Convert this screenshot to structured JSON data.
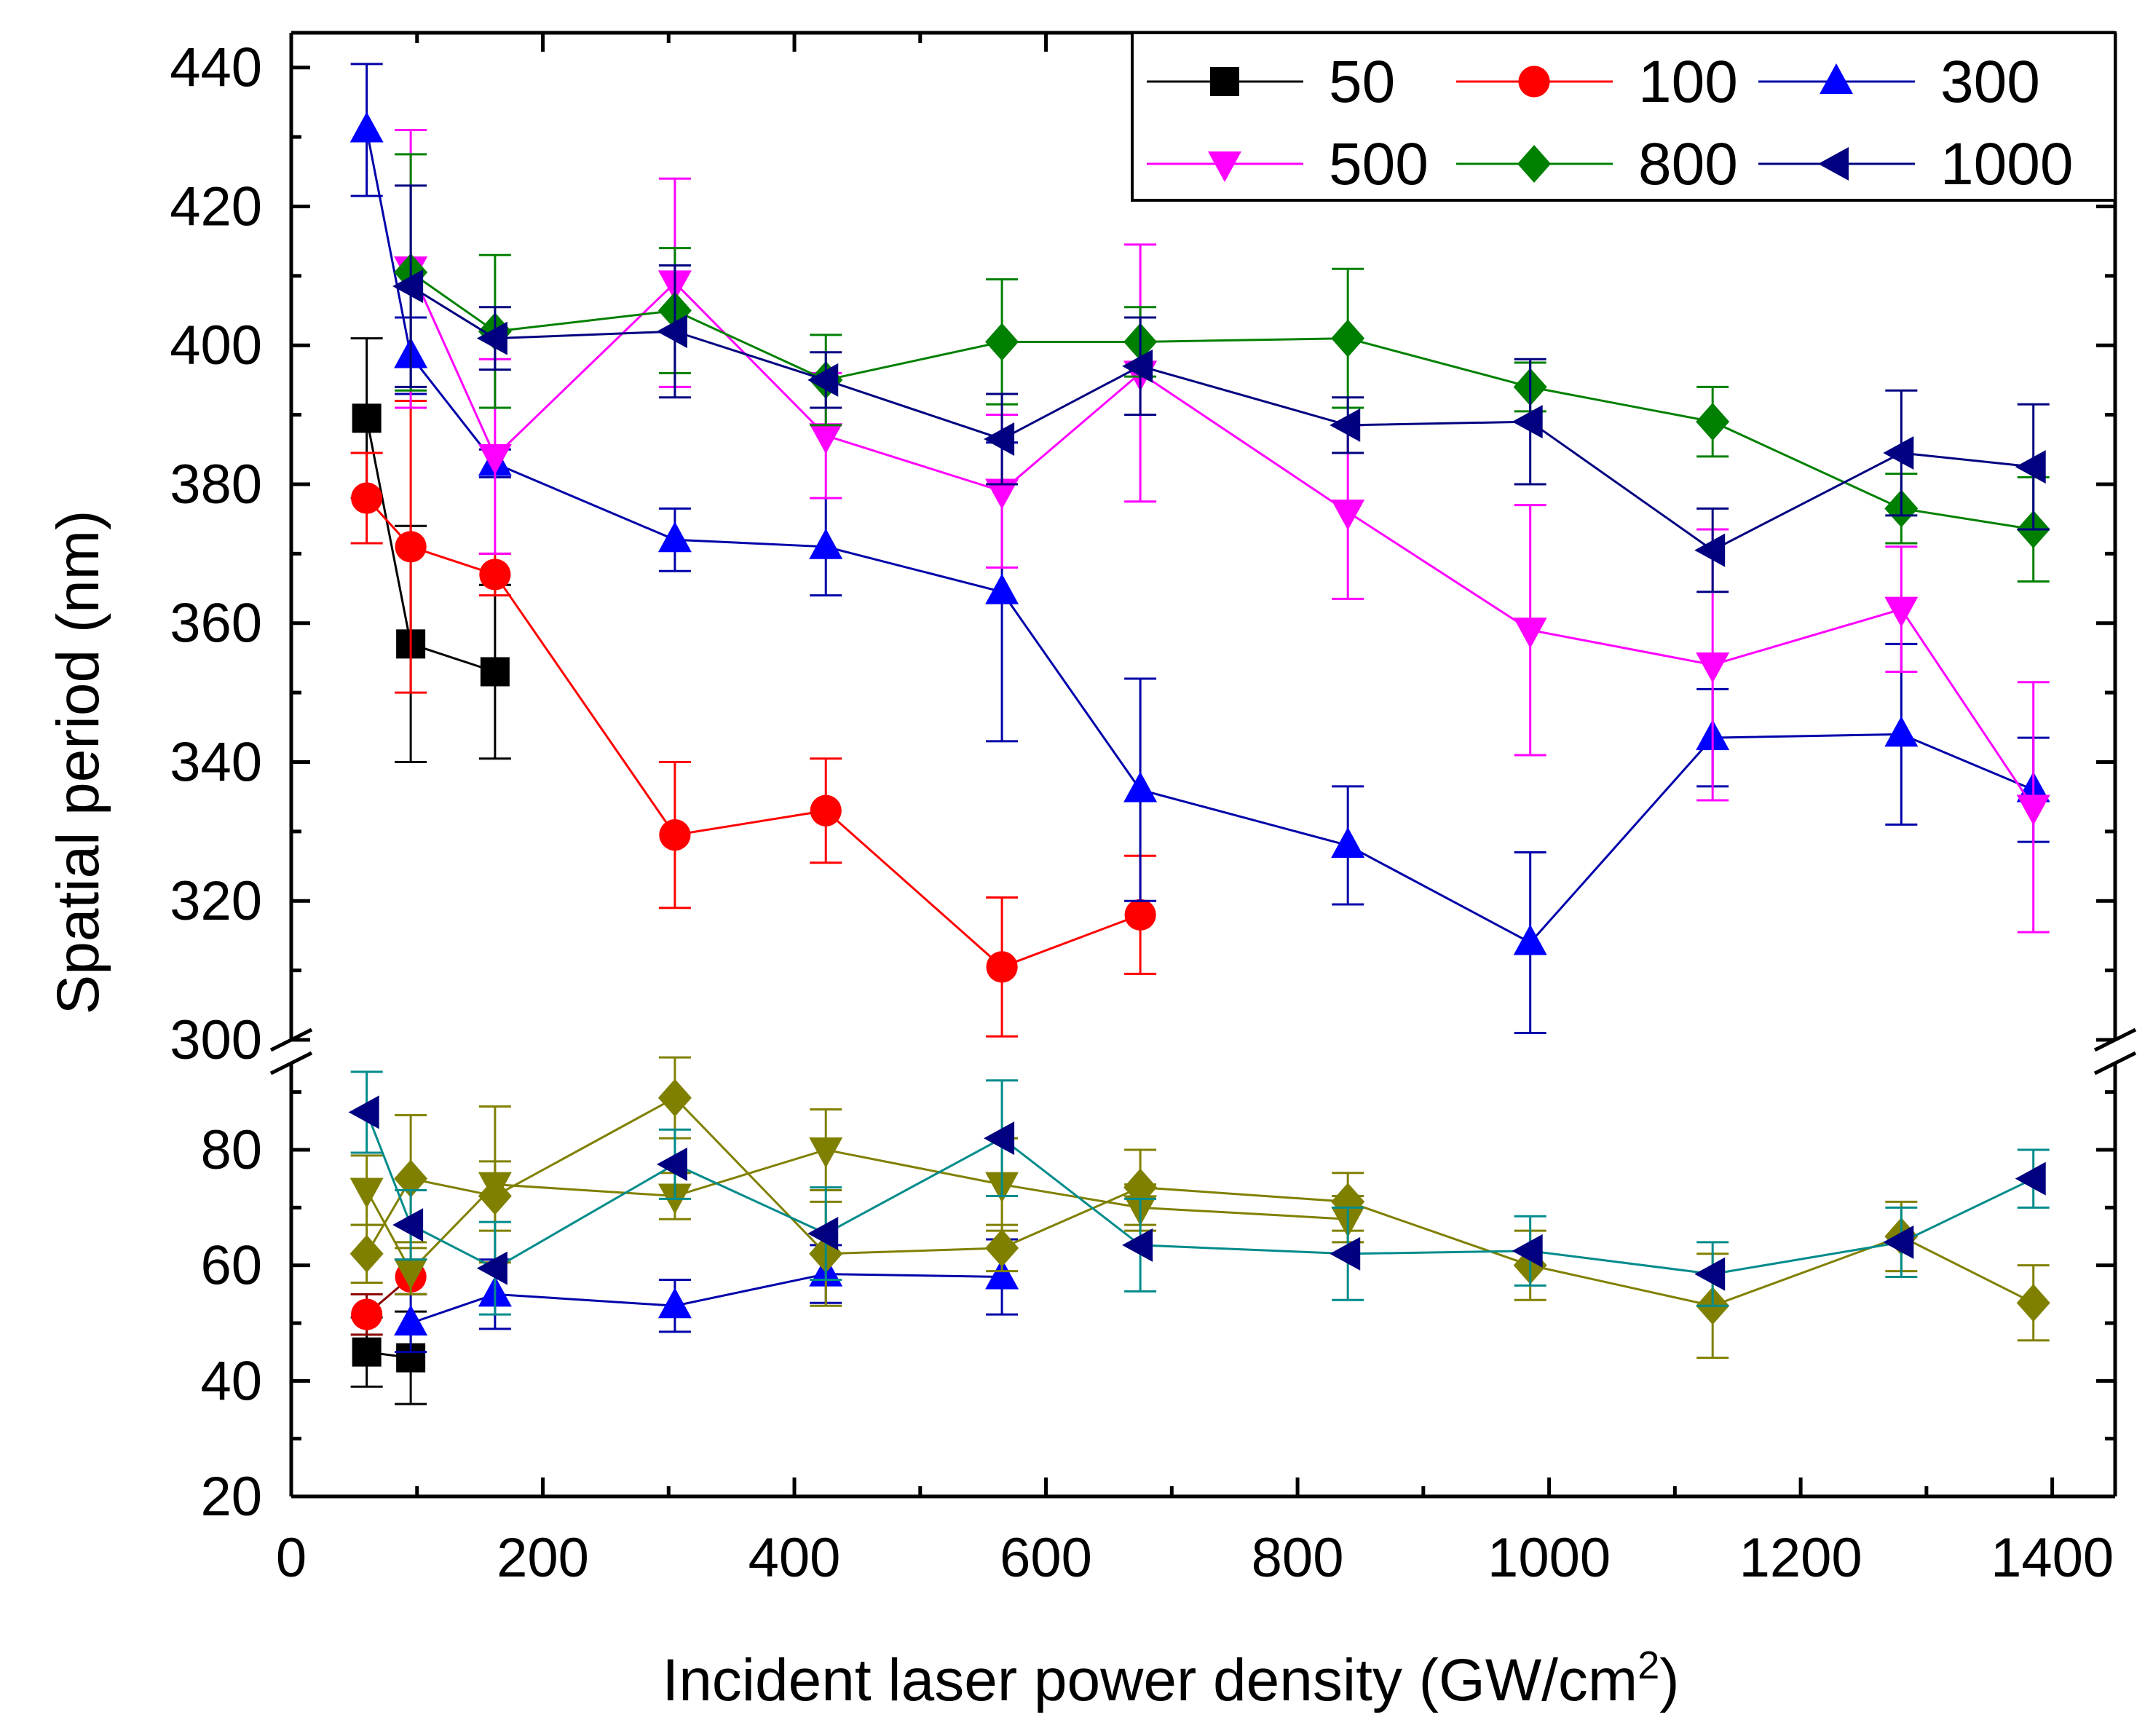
{
  "chart_data": {
    "type": "scatter",
    "title": "",
    "xlabel": "Incident laser power density (GW/cm",
    "xlabel_superscript": "2",
    "xlabel_suffix": ")",
    "ylabel": "Spatial period (nm)",
    "xlim": [
      0,
      1450
    ],
    "ylim_upper": [
      300,
      445
    ],
    "ylim_lower": [
      20,
      95
    ],
    "x_ticks": [
      "0",
      "200",
      "400",
      "600",
      "800",
      "1000",
      "1200",
      "1400"
    ],
    "x_tick_values": [
      0,
      200,
      400,
      600,
      800,
      1000,
      1200,
      1400
    ],
    "y_ticks_upper": [
      "300",
      "320",
      "340",
      "360",
      "380",
      "400",
      "420",
      "440"
    ],
    "y_tick_values_upper": [
      300,
      320,
      340,
      360,
      380,
      400,
      420,
      440
    ],
    "y_ticks_lower": [
      "20",
      "40",
      "60",
      "80"
    ],
    "y_tick_values_lower": [
      20,
      40,
      60,
      80
    ],
    "legend_position": "top-right",
    "series": [
      {
        "name": "50",
        "marker": "square",
        "color": "#000000",
        "line_color": "#000000",
        "upper": [
          {
            "x": 60,
            "y": 389.5,
            "err": 11.5
          },
          {
            "x": 95,
            "y": 357,
            "err": 17
          },
          {
            "x": 162,
            "y": 353,
            "err": 12.5
          }
        ],
        "lower_color": "#000000",
        "lower": [
          {
            "x": 60,
            "y": 45,
            "err": 6
          },
          {
            "x": 95,
            "y": 44,
            "err": 8
          }
        ]
      },
      {
        "name": "100",
        "marker": "circle",
        "color": "#ff0000",
        "line_color": "#ff0000",
        "upper": [
          {
            "x": 60,
            "y": 378,
            "err": 6.5
          },
          {
            "x": 95,
            "y": 371,
            "err": 21
          },
          {
            "x": 162,
            "y": 367,
            "err": 3
          },
          {
            "x": 305,
            "y": 329.5,
            "err": 10.5
          },
          {
            "x": 425,
            "y": 333,
            "err": 7.5
          },
          {
            "x": 565,
            "y": 310.5,
            "err": 10
          },
          {
            "x": 675,
            "y": 318,
            "err": 8.5
          }
        ],
        "lower_color": "#8b0000",
        "lower": [
          {
            "x": 60,
            "y": 51.5,
            "err": 3.5
          },
          {
            "x": 95,
            "y": 58,
            "err": 3
          }
        ]
      },
      {
        "name": "300",
        "marker": "triangle-up",
        "color": "#0000ff",
        "line_color": "#0000aa",
        "upper": [
          {
            "x": 60,
            "y": 431,
            "err": 9.5
          },
          {
            "x": 95,
            "y": 398.5,
            "err": 5.5
          },
          {
            "x": 162,
            "y": 383,
            "err": 2
          },
          {
            "x": 305,
            "y": 372,
            "err": 4.5
          },
          {
            "x": 425,
            "y": 371,
            "err": 7
          },
          {
            "x": 565,
            "y": 364.5,
            "err": 21.5
          },
          {
            "x": 675,
            "y": 336,
            "err": 16
          },
          {
            "x": 840,
            "y": 328,
            "err": 8.5
          },
          {
            "x": 985,
            "y": 314,
            "err": 13
          },
          {
            "x": 1130,
            "y": 343.5,
            "err": 7
          },
          {
            "x": 1280,
            "y": 344,
            "err": 13
          },
          {
            "x": 1385,
            "y": 336,
            "err": 7.5
          }
        ],
        "lower_color": "#0000aa",
        "lower": [
          {
            "x": 95,
            "y": 50,
            "err": 5
          },
          {
            "x": 162,
            "y": 55,
            "err": 6
          },
          {
            "x": 305,
            "y": 53,
            "err": 4.5
          },
          {
            "x": 425,
            "y": 58.5,
            "err": 5
          },
          {
            "x": 565,
            "y": 58,
            "err": 6.5
          }
        ]
      },
      {
        "name": "500",
        "marker": "triangle-down",
        "color": "#ff00ff",
        "line_color": "#ff00ff",
        "upper": [
          {
            "x": 95,
            "y": 411,
            "err": 20
          },
          {
            "x": 162,
            "y": 384,
            "err": 14
          },
          {
            "x": 305,
            "y": 409,
            "err": 15
          },
          {
            "x": 425,
            "y": 387,
            "err": 9
          },
          {
            "x": 565,
            "y": 379,
            "err": 11
          },
          {
            "x": 675,
            "y": 396,
            "err": 18.5
          },
          {
            "x": 840,
            "y": 376,
            "err": 12.5
          },
          {
            "x": 985,
            "y": 359,
            "err": 18
          },
          {
            "x": 1130,
            "y": 354,
            "err": 19.5
          },
          {
            "x": 1280,
            "y": 362,
            "err": 9
          },
          {
            "x": 1385,
            "y": 333.5,
            "err": 18
          }
        ],
        "lower_color": "#808000",
        "lower": [
          {
            "x": 60,
            "y": 73,
            "err": 6
          },
          {
            "x": 95,
            "y": 59,
            "err": 4
          },
          {
            "x": 162,
            "y": 74,
            "err": 13.5
          },
          {
            "x": 305,
            "y": 72,
            "err": 4
          },
          {
            "x": 425,
            "y": 80,
            "err": 7
          },
          {
            "x": 565,
            "y": 74,
            "err": 8
          },
          {
            "x": 675,
            "y": 70,
            "err": 4
          },
          {
            "x": 840,
            "y": 68,
            "err": 4
          }
        ]
      },
      {
        "name": "800",
        "marker": "diamond",
        "color": "#008000",
        "line_color": "#008000",
        "upper": [
          {
            "x": 95,
            "y": 410.5,
            "err": 17
          },
          {
            "x": 162,
            "y": 402,
            "err": 11
          },
          {
            "x": 305,
            "y": 405,
            "err": 9
          },
          {
            "x": 425,
            "y": 395,
            "err": 6.5
          },
          {
            "x": 565,
            "y": 400.5,
            "err": 9
          },
          {
            "x": 675,
            "y": 400.5,
            "err": 5
          },
          {
            "x": 840,
            "y": 401,
            "err": 10
          },
          {
            "x": 985,
            "y": 394,
            "err": 3.5
          },
          {
            "x": 1130,
            "y": 389,
            "err": 5
          },
          {
            "x": 1280,
            "y": 376.5,
            "err": 5
          },
          {
            "x": 1385,
            "y": 373.5,
            "err": 7.5
          }
        ],
        "lower_color": "#808000",
        "lower": [
          {
            "x": 60,
            "y": 62,
            "err": 5
          },
          {
            "x": 95,
            "y": 75,
            "err": 11
          },
          {
            "x": 162,
            "y": 72,
            "err": 6
          },
          {
            "x": 305,
            "y": 89,
            "err": 7
          },
          {
            "x": 425,
            "y": 62,
            "err": 9
          },
          {
            "x": 565,
            "y": 63,
            "err": 4
          },
          {
            "x": 675,
            "y": 73.5,
            "err": 6.5
          },
          {
            "x": 840,
            "y": 71,
            "err": 5
          },
          {
            "x": 985,
            "y": 60,
            "err": 6
          },
          {
            "x": 1130,
            "y": 53,
            "err": 9
          },
          {
            "x": 1280,
            "y": 65,
            "err": 6
          },
          {
            "x": 1385,
            "y": 53.5,
            "err": 6.5
          }
        ]
      },
      {
        "name": "1000",
        "marker": "triangle-left",
        "color": "#000080",
        "line_color": "#000080",
        "upper": [
          {
            "x": 95,
            "y": 408.5,
            "err": 14.5
          },
          {
            "x": 162,
            "y": 401,
            "err": 4.5
          },
          {
            "x": 305,
            "y": 402,
            "err": 9.5
          },
          {
            "x": 425,
            "y": 395,
            "err": 4
          },
          {
            "x": 565,
            "y": 386.5,
            "err": 6.5
          },
          {
            "x": 675,
            "y": 397,
            "err": 7
          },
          {
            "x": 840,
            "y": 388.5,
            "err": 4
          },
          {
            "x": 985,
            "y": 389,
            "err": 9
          },
          {
            "x": 1130,
            "y": 370.5,
            "err": 6
          },
          {
            "x": 1280,
            "y": 384.5,
            "err": 9
          },
          {
            "x": 1385,
            "y": 382.5,
            "err": 9
          }
        ],
        "lower_color": "#008b8b",
        "lower": [
          {
            "x": 60,
            "y": 86.5,
            "err": 7
          },
          {
            "x": 95,
            "y": 67,
            "err": 6
          },
          {
            "x": 162,
            "y": 59.5,
            "err": 8
          },
          {
            "x": 305,
            "y": 77.5,
            "err": 6
          },
          {
            "x": 425,
            "y": 65.5,
            "err": 8
          },
          {
            "x": 565,
            "y": 82,
            "err": 10
          },
          {
            "x": 675,
            "y": 63.5,
            "err": 8
          },
          {
            "x": 840,
            "y": 62,
            "err": 8
          },
          {
            "x": 985,
            "y": 62.5,
            "err": 6
          },
          {
            "x": 1130,
            "y": 58.5,
            "err": 5.5
          },
          {
            "x": 1280,
            "y": 64,
            "err": 6
          },
          {
            "x": 1385,
            "y": 75,
            "err": 5
          }
        ]
      }
    ]
  }
}
